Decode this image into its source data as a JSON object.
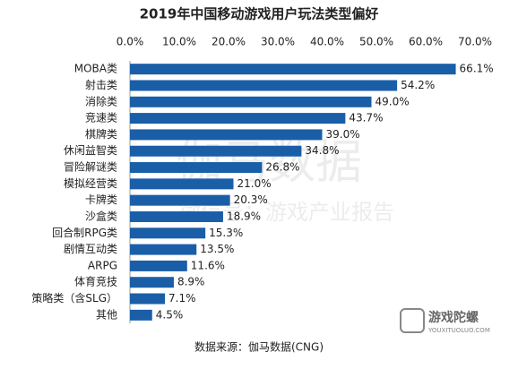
{
  "chart_data": {
    "type": "bar",
    "orientation": "horizontal",
    "title": "2019年中国移动游戏用户玩法类型偏好",
    "categories": [
      "MOBA类",
      "射击类",
      "消除类",
      "竞速类",
      "棋牌类",
      "休闲益智类",
      "冒险解谜类",
      "模拟经营类",
      "卡牌类",
      "沙盒类",
      "回合制RPG类",
      "剧情互动类",
      "ARPG",
      "体育竞技",
      "策略类（含SLG）",
      "其他"
    ],
    "values": [
      66.1,
      54.2,
      49.0,
      43.7,
      39.0,
      34.8,
      26.8,
      21.0,
      20.3,
      18.9,
      15.3,
      13.5,
      11.6,
      8.9,
      7.1,
      4.5
    ],
    "value_labels": [
      "66.1%",
      "54.2%",
      "49.0%",
      "43.7%",
      "39.0%",
      "34.8%",
      "26.8%",
      "21.0%",
      "20.3%",
      "18.9%",
      "15.3%",
      "13.5%",
      "11.6%",
      "8.9%",
      "7.1%",
      "4.5%"
    ],
    "color": "#1a5ea8",
    "xlim": [
      0,
      70
    ],
    "xticks": [
      {
        "value": 0,
        "label": "0.0%"
      },
      {
        "value": 10,
        "label": "10.0%"
      },
      {
        "value": 20,
        "label": "20.0%"
      },
      {
        "value": 30,
        "label": "30.0%"
      },
      {
        "value": 40,
        "label": "40.0%"
      },
      {
        "value": 50,
        "label": "50.0%"
      },
      {
        "value": 60,
        "label": "60.0%"
      },
      {
        "value": 70,
        "label": "70.0%"
      }
    ],
    "grid": false,
    "source": "数据来源：伽马数据(CNG)"
  },
  "watermark": {
    "main": "伽马数据",
    "sub": "微信号：游戏产业报告",
    "logo": "游戏陀螺",
    "logo_url": "YOUXITUOLUO.COM"
  }
}
